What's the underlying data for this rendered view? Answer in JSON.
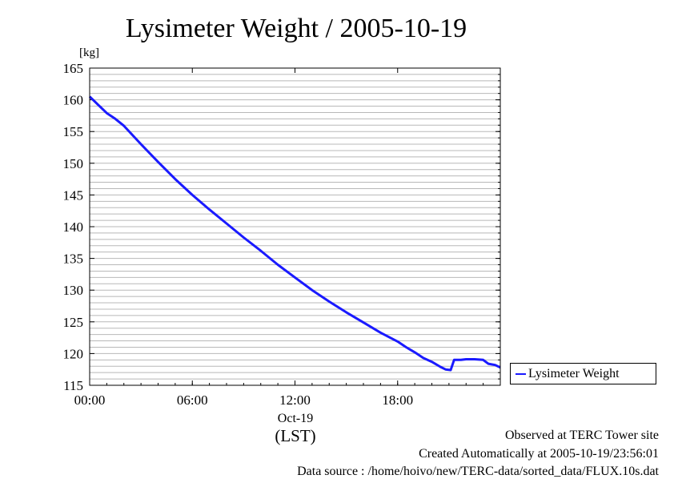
{
  "chart_data": {
    "type": "line",
    "title": "Lysimeter Weight / 2005-10-19",
    "ylabel": "[kg]",
    "xlabel": "(LST)",
    "date_label": "Oct-19",
    "ylim": [
      115,
      165
    ],
    "yticks": [
      "115",
      "120",
      "125",
      "130",
      "135",
      "140",
      "145",
      "150",
      "155",
      "160",
      "165"
    ],
    "xlim_hours": [
      0,
      24
    ],
    "xticks": [
      {
        "hour": 0,
        "label": "00:00"
      },
      {
        "hour": 6,
        "label": "06:00"
      },
      {
        "hour": 12,
        "label": "12:00"
      },
      {
        "hour": 18,
        "label": "18:00"
      }
    ],
    "grid": true,
    "legend_position": "right",
    "series": [
      {
        "name": "Lysimeter Weight",
        "color": "#1a1aff",
        "x": [
          0,
          0.5,
          1,
          1.5,
          2,
          3,
          4,
          5,
          6,
          7,
          8,
          9,
          10,
          11,
          12,
          13,
          14,
          15,
          16,
          17,
          18,
          18.5,
          19,
          19.5,
          20,
          20.5,
          20.8,
          21.1,
          21.3,
          21.7,
          22,
          22.5,
          23,
          23.3,
          23.7,
          24
        ],
        "values": [
          160.5,
          159.2,
          157.9,
          157.0,
          155.9,
          153.0,
          150.2,
          147.5,
          145.0,
          142.7,
          140.5,
          138.3,
          136.2,
          134.0,
          132.0,
          130.0,
          128.2,
          126.5,
          124.9,
          123.3,
          121.9,
          121.0,
          120.2,
          119.3,
          118.7,
          117.9,
          117.5,
          117.4,
          119.0,
          119.0,
          119.1,
          119.1,
          119.0,
          118.4,
          118.2,
          117.8
        ]
      }
    ]
  },
  "legend": {
    "label": "Lysimeter Weight"
  },
  "footer": {
    "site": "Observed at TERC Tower site",
    "created": "Created Automatically at 2005-10-19/23:56:01",
    "source": "Data source : /home/hoivo/new/TERC-data/sorted_data/FLUX.10s.dat"
  }
}
